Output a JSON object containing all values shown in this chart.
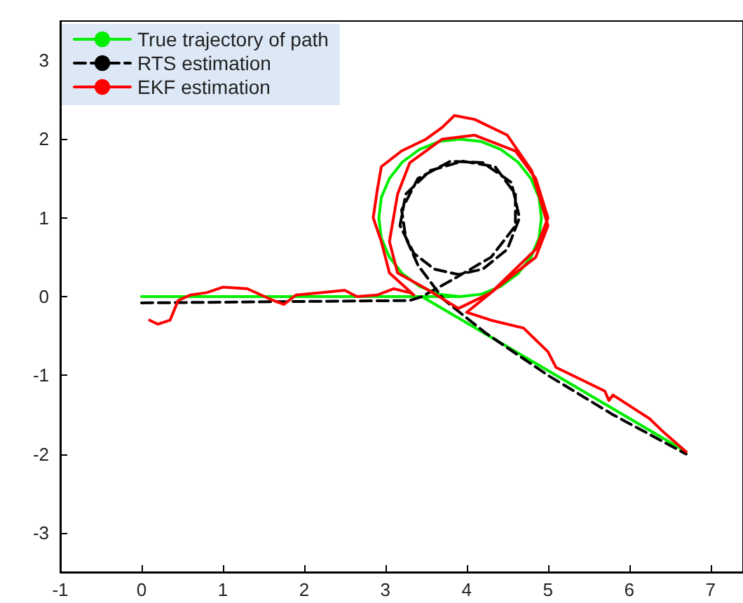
{
  "chart_data": {
    "type": "line",
    "xlim": [
      -1,
      7.4
    ],
    "ylim": [
      -3.5,
      3.5
    ],
    "xticks": [
      -1,
      0,
      1,
      2,
      3,
      4,
      5,
      6,
      7
    ],
    "yticks": [
      -3,
      -2,
      -1,
      0,
      1,
      2,
      3
    ],
    "grid": false,
    "legend": "top left",
    "marker": "none",
    "series": [
      {
        "name": "True trajectory of path",
        "color": "#00ee00",
        "line_style": "solid",
        "x": [
          0,
          3.92,
          4.18,
          4.42,
          4.63,
          4.79,
          4.89,
          4.92,
          4.89,
          4.79,
          4.63,
          4.42,
          4.18,
          3.92,
          3.66,
          3.42,
          3.21,
          3.05,
          2.95,
          2.92,
          2.95,
          3.05,
          3.21,
          3.42,
          3.66,
          3.92,
          3.45,
          6.7
        ],
        "values": [
          0,
          0,
          0.03,
          0.13,
          0.29,
          0.5,
          0.74,
          1,
          1.26,
          1.5,
          1.71,
          1.87,
          1.97,
          2,
          1.97,
          1.87,
          1.71,
          1.5,
          1.26,
          1,
          0.74,
          0.5,
          0.29,
          0.13,
          0.03,
          0,
          0,
          -1.97
        ]
      },
      {
        "name": "RTS estimation",
        "color": "#000000",
        "line_style": "dashed",
        "x": [
          0,
          3.3,
          3.45,
          3.8,
          4.3,
          4.6,
          4.6,
          4.35,
          3.95,
          3.55,
          3.25,
          3.18,
          3.35,
          3.6,
          3.9,
          4.2,
          4.5,
          4.65,
          4.55,
          4.2,
          3.8,
          3.4,
          3.2,
          3.25,
          3.4,
          3.72,
          4.23,
          5,
          5.8,
          6.7
        ],
        "values": [
          -0.08,
          -0.05,
          0,
          0.2,
          0.5,
          0.9,
          1.3,
          1.65,
          1.72,
          1.6,
          1.3,
          0.9,
          0.55,
          0.35,
          0.28,
          0.35,
          0.6,
          1,
          1.45,
          1.7,
          1.72,
          1.5,
          1.1,
          0.75,
          0.4,
          -0.04,
          -0.46,
          -1,
          -1.5,
          -2
        ]
      },
      {
        "name": "EKF estimation",
        "color": "#ff0000",
        "line_style": "solid",
        "x": [
          0.1,
          0.2,
          0.35,
          0.45,
          0.6,
          0.8,
          1,
          1.3,
          1.6,
          1.75,
          1.9,
          2.2,
          2.5,
          2.65,
          2.9,
          3.1,
          3.3,
          3.35,
          3.05,
          2.95,
          2.85,
          2.9,
          2.95,
          3.2,
          3.5,
          3.7,
          3.85,
          4.1,
          4.5,
          4.8,
          4.9,
          5,
          4.85,
          4.6,
          4.3,
          3.9,
          3.5,
          3.15,
          3.05,
          3.15,
          3.3,
          3.7,
          4.1,
          4.6,
          4.85,
          5,
          4.85,
          4.6,
          4.3,
          4,
          4.3,
          4.7,
          5,
          5.1,
          5.5,
          5.7,
          5.75,
          5.8,
          6.1,
          6.25,
          6.4,
          6.7
        ],
        "values": [
          -0.3,
          -0.35,
          -0.3,
          -0.05,
          0.02,
          0.05,
          0.12,
          0.1,
          -0.04,
          -0.1,
          0.02,
          0.05,
          0.08,
          0,
          0.02,
          0.1,
          0.05,
          0.02,
          0.3,
          0.7,
          1,
          1.35,
          1.65,
          1.85,
          2,
          2.15,
          2.3,
          2.25,
          2.05,
          1.6,
          1.25,
          0.9,
          0.5,
          0.3,
          0.05,
          -0.15,
          0.1,
          0.3,
          0.7,
          1.3,
          1.7,
          2,
          2.05,
          1.85,
          1.5,
          1,
          0.6,
          0.35,
          0.05,
          -0.2,
          -0.3,
          -0.4,
          -0.7,
          -0.9,
          -1.1,
          -1.2,
          -1.32,
          -1.25,
          -1.45,
          -1.55,
          -1.7,
          -1.97
        ]
      }
    ]
  }
}
